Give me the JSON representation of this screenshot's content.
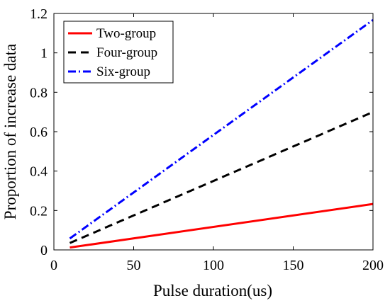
{
  "chart_data": {
    "type": "line",
    "title": "",
    "xlabel": "Pulse duration(us)",
    "ylabel": "Proportion of increase data",
    "xlim": [
      0,
      200
    ],
    "ylim": [
      0,
      1.2
    ],
    "xticks": [
      "0",
      "50",
      "100",
      "150",
      "200"
    ],
    "yticks": [
      "0",
      "0.2",
      "0.4",
      "0.6",
      "0.8",
      "1",
      "1.2"
    ],
    "grid": false,
    "legend_position": "top-left",
    "series": [
      {
        "name": "Two-group",
        "color": "#ff0000",
        "style": "solid",
        "x": [
          10,
          200
        ],
        "y": [
          0.012,
          0.233
        ]
      },
      {
        "name": "Four-group",
        "color": "#000000",
        "style": "dashed",
        "x": [
          10,
          200
        ],
        "y": [
          0.035,
          0.7
        ]
      },
      {
        "name": "Six-group",
        "color": "#0000ff",
        "style": "dash-dot",
        "x": [
          10,
          200
        ],
        "y": [
          0.058,
          1.167
        ]
      }
    ]
  }
}
